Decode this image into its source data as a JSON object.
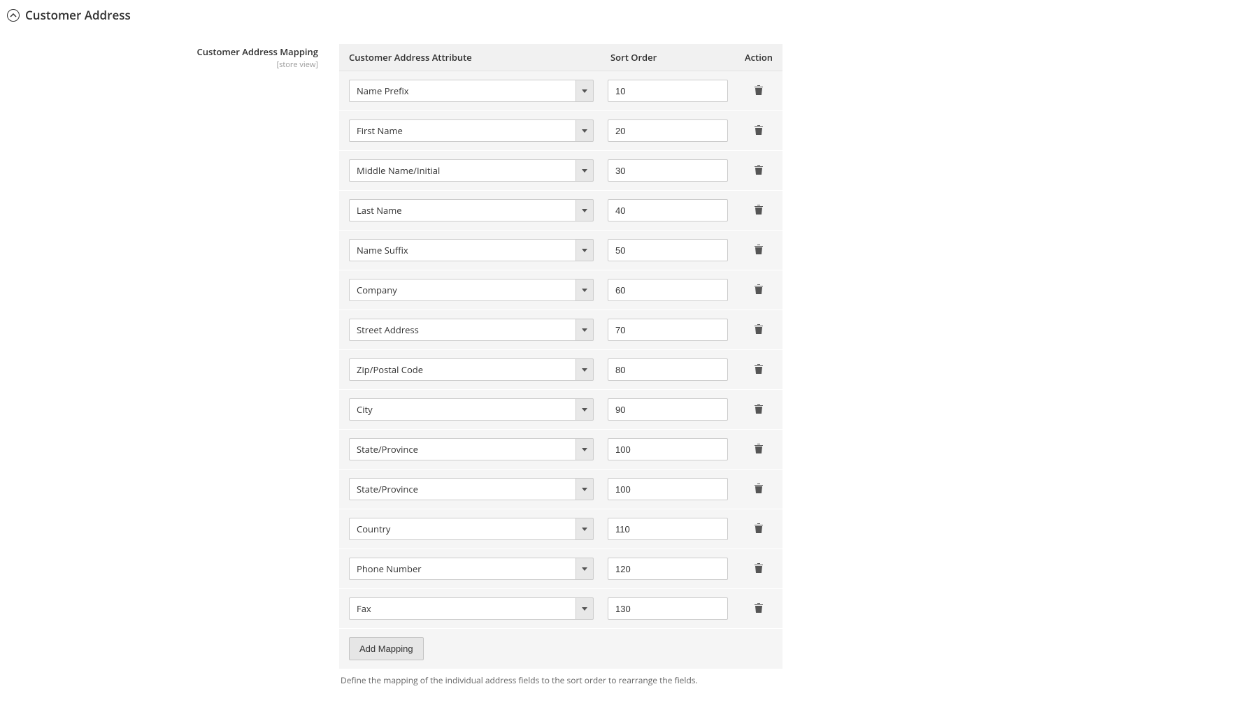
{
  "section": {
    "title": "Customer Address"
  },
  "field": {
    "label": "Customer Address Mapping",
    "scope": "[store view]"
  },
  "table": {
    "headers": {
      "attribute": "Customer Address Attribute",
      "sort_order": "Sort Order",
      "action": "Action"
    },
    "rows": [
      {
        "attribute": "Name Prefix",
        "sort_order": "10"
      },
      {
        "attribute": "First Name",
        "sort_order": "20"
      },
      {
        "attribute": "Middle Name/Initial",
        "sort_order": "30"
      },
      {
        "attribute": "Last Name",
        "sort_order": "40"
      },
      {
        "attribute": "Name Suffix",
        "sort_order": "50"
      },
      {
        "attribute": "Company",
        "sort_order": "60"
      },
      {
        "attribute": "Street Address",
        "sort_order": "70"
      },
      {
        "attribute": "Zip/Postal Code",
        "sort_order": "80"
      },
      {
        "attribute": "City",
        "sort_order": "90"
      },
      {
        "attribute": "State/Province",
        "sort_order": "100"
      },
      {
        "attribute": "State/Province",
        "sort_order": "100"
      },
      {
        "attribute": "Country",
        "sort_order": "110"
      },
      {
        "attribute": "Phone Number",
        "sort_order": "120"
      },
      {
        "attribute": "Fax",
        "sort_order": "130"
      }
    ],
    "add_button": "Add Mapping",
    "help_text": "Define the mapping of the individual address fields to the sort order to rearrange the fields."
  },
  "colors": {
    "header_bg": "#f1f1f1",
    "row_bg": "#f5f5f5",
    "border": "#cccccc",
    "text": "#333333",
    "help": "#666666"
  }
}
